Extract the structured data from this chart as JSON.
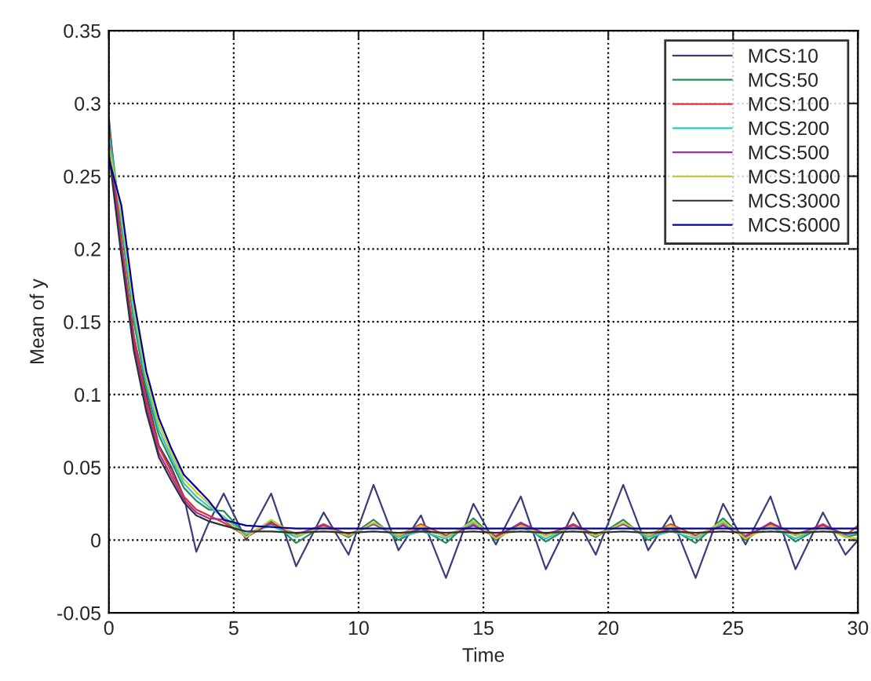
{
  "chart_data": {
    "type": "line",
    "xlabel": "Time",
    "ylabel": "Mean of y",
    "x": [
      0,
      0.5,
      1,
      1.5,
      2,
      2.5,
      3,
      3.5,
      4,
      4.6,
      5.5,
      6.5,
      7.5,
      8.6,
      9.6,
      10.6,
      11.6,
      12.5,
      13.5,
      14.6,
      15.5,
      16.5,
      17.5,
      18.6,
      19.5,
      20.6,
      21.6,
      22.5,
      23.5,
      24.6,
      25.5,
      26.5,
      27.5,
      28.6,
      29.5,
      30
    ],
    "series": [
      {
        "name": "MCS:10",
        "color": "#3c3c78",
        "values": [
          0.29,
          0.2,
          0.14,
          0.1,
          0.065,
          0.05,
          0.03,
          -0.008,
          0.012,
          0.032,
          0.0,
          0.032,
          -0.018,
          0.019,
          -0.01,
          0.038,
          -0.007,
          0.017,
          -0.026,
          0.025,
          -0.003,
          0.03,
          -0.02,
          0.019,
          -0.01,
          0.038,
          -0.007,
          0.017,
          -0.026,
          0.025,
          -0.003,
          0.03,
          -0.02,
          0.019,
          -0.01,
          0.0
        ]
      },
      {
        "name": "MCS:50",
        "color": "#2e8b57",
        "values": [
          0.286,
          0.215,
          0.15,
          0.104,
          0.072,
          0.054,
          0.036,
          0.027,
          0.021,
          0.02,
          0.003,
          0.013,
          -0.002,
          0.01,
          0.002,
          0.014,
          0.0,
          0.008,
          -0.002,
          0.015,
          0.0,
          0.012,
          -0.001,
          0.01,
          0.002,
          0.014,
          0.0,
          0.008,
          -0.002,
          0.015,
          0.0,
          0.012,
          -0.001,
          0.01,
          0.002,
          0.004
        ]
      },
      {
        "name": "MCS:100",
        "color": "#e03030",
        "values": [
          0.282,
          0.205,
          0.14,
          0.096,
          0.064,
          0.047,
          0.03,
          0.021,
          0.017,
          0.012,
          0.003,
          0.011,
          0.003,
          0.011,
          0.003,
          0.011,
          0.003,
          0.011,
          0.003,
          0.011,
          0.003,
          0.011,
          0.003,
          0.011,
          0.003,
          0.011,
          0.003,
          0.011,
          0.003,
          0.011,
          0.003,
          0.011,
          0.003,
          0.011,
          0.003,
          0.01
        ]
      },
      {
        "name": "MCS:200",
        "color": "#30c8c8",
        "values": [
          0.278,
          0.22,
          0.155,
          0.108,
          0.076,
          0.057,
          0.039,
          0.03,
          0.023,
          0.016,
          0.004,
          0.01,
          0.002,
          0.01,
          0.003,
          0.011,
          0.002,
          0.006,
          0.001,
          0.012,
          0.002,
          0.009,
          0.001,
          0.01,
          0.003,
          0.011,
          0.002,
          0.006,
          0.001,
          0.012,
          0.002,
          0.009,
          0.001,
          0.01,
          0.003,
          0.005
        ]
      },
      {
        "name": "MCS:500",
        "color": "#a030a0",
        "values": [
          0.274,
          0.2,
          0.135,
          0.092,
          0.06,
          0.044,
          0.028,
          0.019,
          0.015,
          0.014,
          0.002,
          0.012,
          0.004,
          0.01,
          0.004,
          0.011,
          0.003,
          0.008,
          0.003,
          0.01,
          0.002,
          0.012,
          0.004,
          0.01,
          0.004,
          0.011,
          0.003,
          0.008,
          0.003,
          0.01,
          0.002,
          0.012,
          0.004,
          0.01,
          0.004,
          0.006
        ]
      },
      {
        "name": "MCS:1000",
        "color": "#c8c830",
        "values": [
          0.27,
          0.225,
          0.16,
          0.112,
          0.08,
          0.06,
          0.042,
          0.033,
          0.025,
          0.015,
          0.002,
          0.014,
          0.003,
          0.009,
          0.003,
          0.012,
          0.003,
          0.01,
          0.002,
          0.013,
          0.001,
          0.01,
          0.003,
          0.009,
          0.003,
          0.012,
          0.003,
          0.01,
          0.002,
          0.013,
          0.001,
          0.01,
          0.003,
          0.009,
          0.002,
          0.001
        ]
      },
      {
        "name": "MCS:3000",
        "color": "#303030",
        "values": [
          0.266,
          0.195,
          0.13,
          0.088,
          0.057,
          0.041,
          0.026,
          0.017,
          0.013,
          0.01,
          0.006,
          0.006,
          0.005,
          0.006,
          0.005,
          0.006,
          0.005,
          0.006,
          0.005,
          0.006,
          0.005,
          0.006,
          0.005,
          0.006,
          0.005,
          0.006,
          0.005,
          0.006,
          0.005,
          0.006,
          0.005,
          0.006,
          0.005,
          0.006,
          0.005,
          0.005
        ]
      },
      {
        "name": "MCS:6000",
        "color": "#0000a0",
        "values": [
          0.262,
          0.23,
          0.165,
          0.116,
          0.084,
          0.063,
          0.045,
          0.036,
          0.027,
          0.014,
          0.01,
          0.009,
          0.008,
          0.008,
          0.008,
          0.008,
          0.008,
          0.008,
          0.008,
          0.008,
          0.008,
          0.008,
          0.008,
          0.008,
          0.008,
          0.008,
          0.008,
          0.008,
          0.008,
          0.008,
          0.008,
          0.008,
          0.008,
          0.008,
          0.008,
          0.008
        ]
      }
    ],
    "xlim": [
      0,
      30
    ],
    "xticks": [
      0,
      5,
      10,
      15,
      20,
      25,
      30
    ],
    "ylim": [
      -0.05,
      0.35
    ],
    "yticks": [
      -0.05,
      0,
      0.05,
      0.1,
      0.15,
      0.2,
      0.25,
      0.3,
      0.35
    ],
    "grid": true,
    "legend": "top right",
    "line_style": "solid",
    "marker": "none"
  }
}
